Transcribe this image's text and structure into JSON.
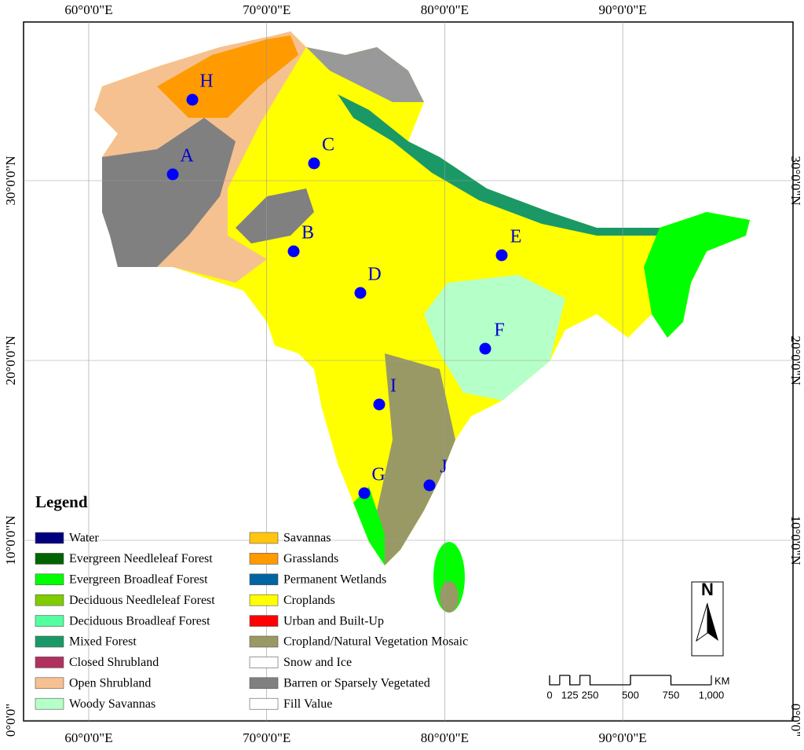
{
  "graticule": {
    "lon": [
      {
        "value": 60,
        "label": "60°0'0\"E"
      },
      {
        "value": 70,
        "label": "70°0'0\"E"
      },
      {
        "value": 80,
        "label": "80°0'0\"E"
      },
      {
        "value": 90,
        "label": "90°0'0\"E"
      }
    ],
    "lat": [
      {
        "value": 30,
        "label": "30°0'0\"N"
      },
      {
        "value": 20,
        "label": "20°0'0\"N"
      },
      {
        "value": 10,
        "label": "10°0'0\"N"
      },
      {
        "value": 0,
        "label": "0°0'0\""
      }
    ]
  },
  "sites": [
    "H",
    "A",
    "C",
    "B",
    "D",
    "E",
    "F",
    "I",
    "G",
    "J"
  ],
  "legend": {
    "title": "Legend",
    "items": [
      {
        "label": "Water",
        "color": "#00007f"
      },
      {
        "label": "Evergreen Needleleaf Forest",
        "color": "#006400"
      },
      {
        "label": "Evergreen Broadleaf Forest",
        "color": "#00ff00"
      },
      {
        "label": "Deciduous Needleleaf Forest",
        "color": "#80cc00"
      },
      {
        "label": "Deciduous Broadleaf Forest",
        "color": "#54ff9f"
      },
      {
        "label": "Mixed Forest",
        "color": "#1a9966"
      },
      {
        "label": "Closed Shrubland",
        "color": "#b03060"
      },
      {
        "label": "Open Shrubland",
        "color": "#f6c190"
      },
      {
        "label": "Woody Savannas",
        "color": "#b5ffc8"
      },
      {
        "label": "Savannas",
        "color": "#ffc50f"
      },
      {
        "label": "Grasslands",
        "color": "#ff9a00"
      },
      {
        "label": "Permanent Wetlands",
        "color": "#0064a0"
      },
      {
        "label": "Croplands",
        "color": "#ffff00"
      },
      {
        "label": "Urban and Built-Up",
        "color": "#ff0000"
      },
      {
        "label": "Cropland/Natural Vegetation Mosaic",
        "color": "#999966"
      },
      {
        "label": "Snow and Ice",
        "color": "#ffffff"
      },
      {
        "label": "Barren or Sparsely Vegetated",
        "color": "#808080"
      },
      {
        "label": "Fill Value",
        "color": "#ffffff"
      }
    ]
  },
  "north": "N",
  "scale": {
    "ticks": [
      0,
      125,
      250,
      500,
      750,
      {
        "value": 1000,
        "label": "1,000"
      }
    ],
    "unit": "KM"
  }
}
